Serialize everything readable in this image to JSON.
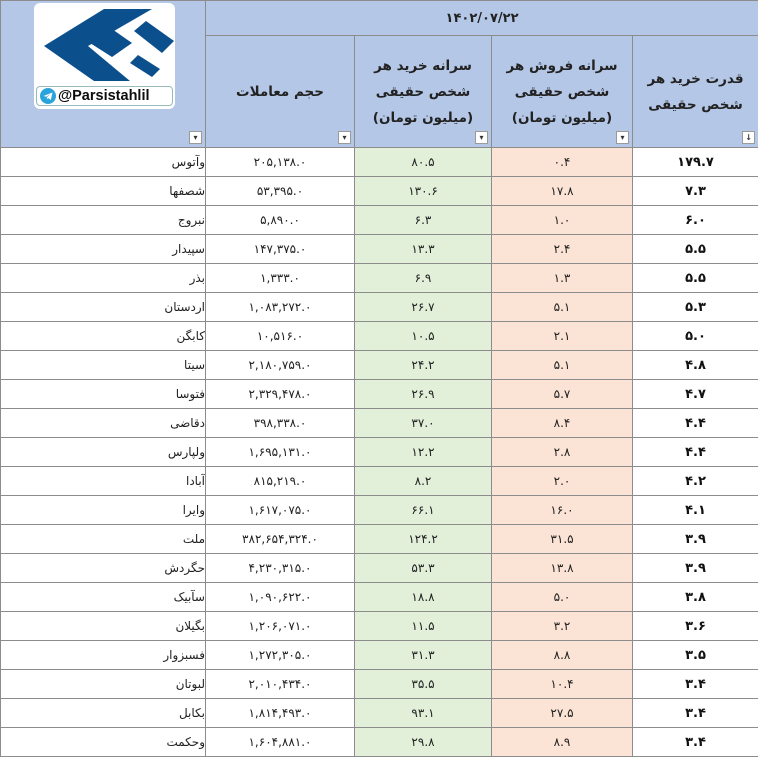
{
  "header": {
    "date": "۱۴۰۲/۰۷/۲۲",
    "col_volume": "حجم معاملات",
    "col_buy": "سرانه خرید هر شخص حقیقی (میلیون تومان)",
    "col_sell": "سرانه فروش هر شخص حقیقی (میلیون تومان)",
    "col_power": "قدرت خرید هر شخص حقیقی",
    "filter_glyph": "▾",
    "sort_glyph": "↓"
  },
  "logo": {
    "handle": "@Parsistahlil",
    "brand_color": "#0b4f8c",
    "telegram_color": "#2aa3dc"
  },
  "colors": {
    "header_bg": "#b4c7e7",
    "buy_bg": "#e2efd9",
    "sell_bg": "#fbe4d5"
  },
  "rows": [
    {
      "name": "وآتوس",
      "volume": "۲۰۵,۱۳۸.۰",
      "buy": "۸۰.۵",
      "sell": "۰.۴",
      "power": "۱۷۹.۷"
    },
    {
      "name": "شصفها",
      "volume": "۵۳,۳۹۵.۰",
      "buy": "۱۳۰.۶",
      "sell": "۱۷.۸",
      "power": "۷.۳"
    },
    {
      "name": "نبروج",
      "volume": "۵,۸۹۰.۰",
      "buy": "۶.۳",
      "sell": "۱.۰",
      "power": "۶.۰"
    },
    {
      "name": "سپیدار",
      "volume": "۱۴۷,۳۷۵.۰",
      "buy": "۱۳.۳",
      "sell": "۲.۴",
      "power": "۵.۵"
    },
    {
      "name": "بذر",
      "volume": "۱,۳۳۳.۰",
      "buy": "۶.۹",
      "sell": "۱.۳",
      "power": "۵.۵"
    },
    {
      "name": "اردستان",
      "volume": "۱,۰۸۳,۲۷۲.۰",
      "buy": "۲۶.۷",
      "sell": "۵.۱",
      "power": "۵.۳"
    },
    {
      "name": "کابگن",
      "volume": "۱۰,۵۱۶.۰",
      "buy": "۱۰.۵",
      "sell": "۲.۱",
      "power": "۵.۰"
    },
    {
      "name": "سیتا",
      "volume": "۲,۱۸۰,۷۵۹.۰",
      "buy": "۲۴.۲",
      "sell": "۵.۱",
      "power": "۴.۸"
    },
    {
      "name": "فتوسا",
      "volume": "۲,۳۲۹,۴۷۸.۰",
      "buy": "۲۶.۹",
      "sell": "۵.۷",
      "power": "۴.۷"
    },
    {
      "name": "دقاضی",
      "volume": "۳۹۸,۳۳۸.۰",
      "buy": "۳۷.۰",
      "sell": "۸.۴",
      "power": "۴.۴"
    },
    {
      "name": "ولپارس",
      "volume": "۱,۶۹۵,۱۳۱.۰",
      "buy": "۱۲.۲",
      "sell": "۲.۸",
      "power": "۴.۴"
    },
    {
      "name": "آبادا",
      "volume": "۸۱۵,۲۱۹.۰",
      "buy": "۸.۲",
      "sell": "۲.۰",
      "power": "۴.۲"
    },
    {
      "name": "وایرا",
      "volume": "۱,۶۱۷,۰۷۵.۰",
      "buy": "۶۶.۱",
      "sell": "۱۶.۰",
      "power": "۴.۱"
    },
    {
      "name": "ملت",
      "volume": "۳۸۲,۶۵۴,۳۲۴.۰",
      "buy": "۱۲۴.۲",
      "sell": "۳۱.۵",
      "power": "۳.۹"
    },
    {
      "name": "حگردش",
      "volume": "۴,۲۳۰,۳۱۵.۰",
      "buy": "۵۳.۳",
      "sell": "۱۳.۸",
      "power": "۳.۹"
    },
    {
      "name": "سآبیک",
      "volume": "۱,۰۹۰,۶۲۲.۰",
      "buy": "۱۸.۸",
      "sell": "۵.۰",
      "power": "۳.۸"
    },
    {
      "name": "بگیلان",
      "volume": "۱,۲۰۶,۰۷۱.۰",
      "buy": "۱۱.۵",
      "sell": "۳.۲",
      "power": "۳.۶"
    },
    {
      "name": "فسبزوار",
      "volume": "۱,۲۷۲,۳۰۵.۰",
      "buy": "۳۱.۳",
      "sell": "۸.۸",
      "power": "۳.۵"
    },
    {
      "name": "لبوتان",
      "volume": "۲,۰۱۰,۴۳۴.۰",
      "buy": "۳۵.۵",
      "sell": "۱۰.۴",
      "power": "۳.۴"
    },
    {
      "name": "بکابل",
      "volume": "۱,۸۱۴,۴۹۳.۰",
      "buy": "۹۳.۱",
      "sell": "۲۷.۵",
      "power": "۳.۴"
    },
    {
      "name": "وحکمت",
      "volume": "۱,۶۰۴,۸۸۱.۰",
      "buy": "۲۹.۸",
      "sell": "۸.۹",
      "power": "۳.۴"
    }
  ]
}
